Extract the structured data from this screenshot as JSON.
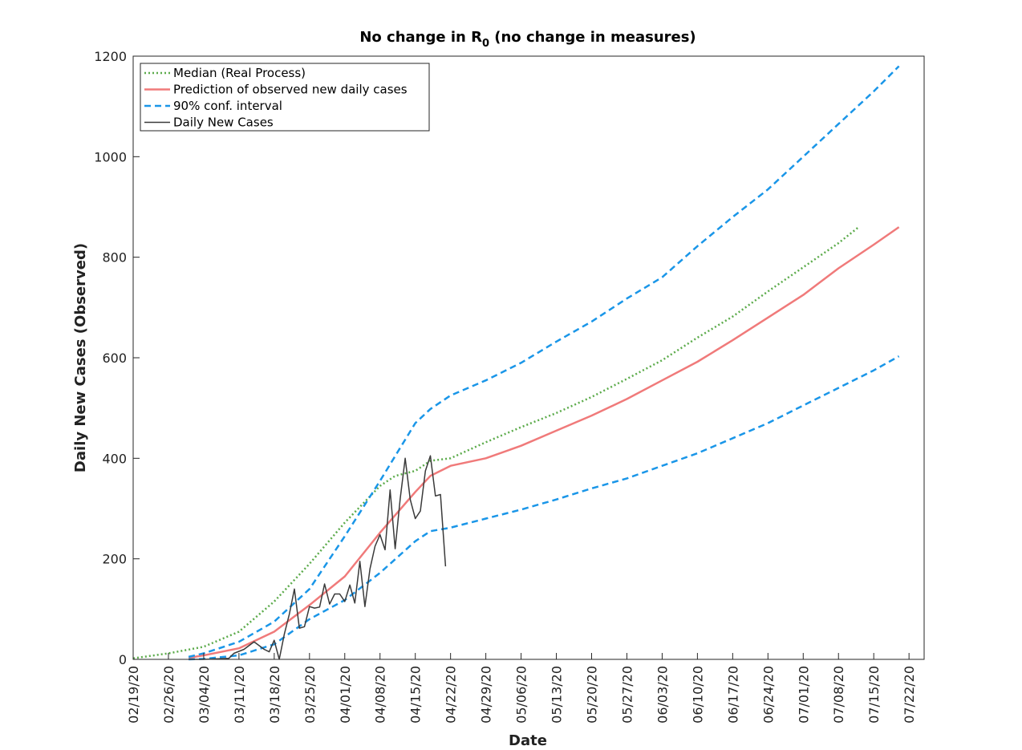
{
  "chart_data": {
    "type": "line",
    "title_main": "No change in R",
    "title_sub": "0",
    "title_rest": " (no change in measures)",
    "xlabel": "Date",
    "ylabel": "Daily New Cases (Observed)",
    "x_axis_type": "date",
    "xlim": [
      "2020-02-19",
      "2020-07-25"
    ],
    "ylim": [
      0,
      1200
    ],
    "yticks": [
      0,
      200,
      400,
      600,
      800,
      1000,
      1200
    ],
    "xtick_labels": [
      "02/19/20",
      "02/26/20",
      "03/04/20",
      "03/11/20",
      "03/18/20",
      "03/25/20",
      "04/01/20",
      "04/08/20",
      "04/15/20",
      "04/22/20",
      "04/29/20",
      "05/06/20",
      "05/13/20",
      "05/20/20",
      "05/27/20",
      "06/03/20",
      "06/10/20",
      "06/17/20",
      "06/24/20",
      "07/01/20",
      "07/08/20",
      "07/15/20",
      "07/22/20"
    ],
    "xtick_dates": [
      "2020-02-19",
      "2020-02-26",
      "2020-03-04",
      "2020-03-11",
      "2020-03-18",
      "2020-03-25",
      "2020-04-01",
      "2020-04-08",
      "2020-04-15",
      "2020-04-22",
      "2020-04-29",
      "2020-05-06",
      "2020-05-13",
      "2020-05-20",
      "2020-05-27",
      "2020-06-03",
      "2020-06-10",
      "2020-06-17",
      "2020-06-24",
      "2020-07-01",
      "2020-07-08",
      "2020-07-15",
      "2020-07-22"
    ],
    "grid": false,
    "legend_position": "top-left",
    "series": [
      {
        "name": "Median (Real Process)",
        "style": "dotted",
        "color": "#5cab4b",
        "x": [
          "2020-02-19",
          "2020-02-26",
          "2020-03-04",
          "2020-03-11",
          "2020-03-18",
          "2020-03-25",
          "2020-04-01",
          "2020-04-08",
          "2020-04-11",
          "2020-04-15",
          "2020-04-18",
          "2020-04-22",
          "2020-04-29",
          "2020-05-06",
          "2020-05-13",
          "2020-05-20",
          "2020-05-27",
          "2020-06-03",
          "2020-06-10",
          "2020-06-17",
          "2020-06-24",
          "2020-07-01",
          "2020-07-08",
          "2020-07-12"
        ],
        "values": [
          2,
          12,
          25,
          55,
          115,
          190,
          272,
          345,
          365,
          375,
          395,
          400,
          432,
          462,
          490,
          522,
          558,
          595,
          640,
          682,
          732,
          780,
          828,
          860
        ]
      },
      {
        "name": "Prediction of observed new daily cases",
        "style": "solid",
        "color": "#f07a7a",
        "x": [
          "2020-03-01",
          "2020-03-04",
          "2020-03-11",
          "2020-03-18",
          "2020-03-25",
          "2020-04-01",
          "2020-04-08",
          "2020-04-15",
          "2020-04-18",
          "2020-04-22",
          "2020-04-29",
          "2020-05-06",
          "2020-05-13",
          "2020-05-20",
          "2020-05-27",
          "2020-06-03",
          "2020-06-10",
          "2020-06-17",
          "2020-06-24",
          "2020-07-01",
          "2020-07-08",
          "2020-07-15",
          "2020-07-20"
        ],
        "values": [
          3,
          8,
          22,
          55,
          108,
          165,
          252,
          333,
          365,
          385,
          400,
          425,
          455,
          485,
          518,
          555,
          592,
          635,
          680,
          725,
          778,
          825,
          860
        ]
      },
      {
        "name": "90% conf. interval",
        "style": "dashed",
        "color": "#1a96e8",
        "x": [
          "2020-03-01",
          "2020-03-04",
          "2020-03-11",
          "2020-03-18",
          "2020-03-25",
          "2020-04-01",
          "2020-04-08",
          "2020-04-15",
          "2020-04-18",
          "2020-04-22",
          "2020-04-29",
          "2020-05-06",
          "2020-05-13",
          "2020-05-20",
          "2020-05-27",
          "2020-06-03",
          "2020-06-10",
          "2020-06-17",
          "2020-06-24",
          "2020-07-01",
          "2020-07-08",
          "2020-07-15",
          "2020-07-20"
        ],
        "values": [
          5,
          12,
          35,
          75,
          140,
          245,
          355,
          470,
          498,
          525,
          555,
          590,
          632,
          672,
          718,
          760,
          822,
          880,
          935,
          1000,
          1065,
          1130,
          1180
        ]
      },
      {
        "name": "",
        "style": "dashed",
        "color": "#1a96e8",
        "x": [
          "2020-03-01",
          "2020-03-04",
          "2020-03-11",
          "2020-03-18",
          "2020-03-25",
          "2020-04-01",
          "2020-04-08",
          "2020-04-15",
          "2020-04-18",
          "2020-04-22",
          "2020-04-29",
          "2020-05-06",
          "2020-05-13",
          "2020-05-20",
          "2020-05-27",
          "2020-06-03",
          "2020-06-10",
          "2020-06-17",
          "2020-06-24",
          "2020-07-01",
          "2020-07-08",
          "2020-07-15",
          "2020-07-20"
        ],
        "values": [
          0,
          1,
          8,
          30,
          80,
          118,
          172,
          235,
          255,
          262,
          280,
          298,
          318,
          340,
          360,
          385,
          410,
          440,
          470,
          505,
          540,
          575,
          603
        ]
      },
      {
        "name": "Daily New Cases",
        "style": "solid",
        "color": "#3a3a3a",
        "x": [
          "2020-03-01",
          "2020-03-04",
          "2020-03-09",
          "2020-03-10",
          "2020-03-12",
          "2020-03-14",
          "2020-03-16",
          "2020-03-17",
          "2020-03-18",
          "2020-03-19",
          "2020-03-20",
          "2020-03-21",
          "2020-03-22",
          "2020-03-23",
          "2020-03-24",
          "2020-03-25",
          "2020-03-26",
          "2020-03-27",
          "2020-03-28",
          "2020-03-29",
          "2020-03-30",
          "2020-03-31",
          "2020-04-01",
          "2020-04-02",
          "2020-04-03",
          "2020-04-04",
          "2020-04-05",
          "2020-04-06",
          "2020-04-07",
          "2020-04-08",
          "2020-04-09",
          "2020-04-10",
          "2020-04-11",
          "2020-04-12",
          "2020-04-13",
          "2020-04-14",
          "2020-04-15",
          "2020-04-16",
          "2020-04-17",
          "2020-04-18",
          "2020-04-19",
          "2020-04-20",
          "2020-04-21"
        ],
        "values": [
          0,
          0,
          2,
          12,
          20,
          35,
          20,
          15,
          38,
          0,
          50,
          90,
          140,
          62,
          65,
          105,
          102,
          104,
          150,
          110,
          130,
          130,
          115,
          148,
          112,
          195,
          105,
          180,
          225,
          248,
          218,
          337,
          220,
          320,
          400,
          318,
          280,
          295,
          375,
          405,
          325,
          328,
          185
        ]
      }
    ]
  }
}
